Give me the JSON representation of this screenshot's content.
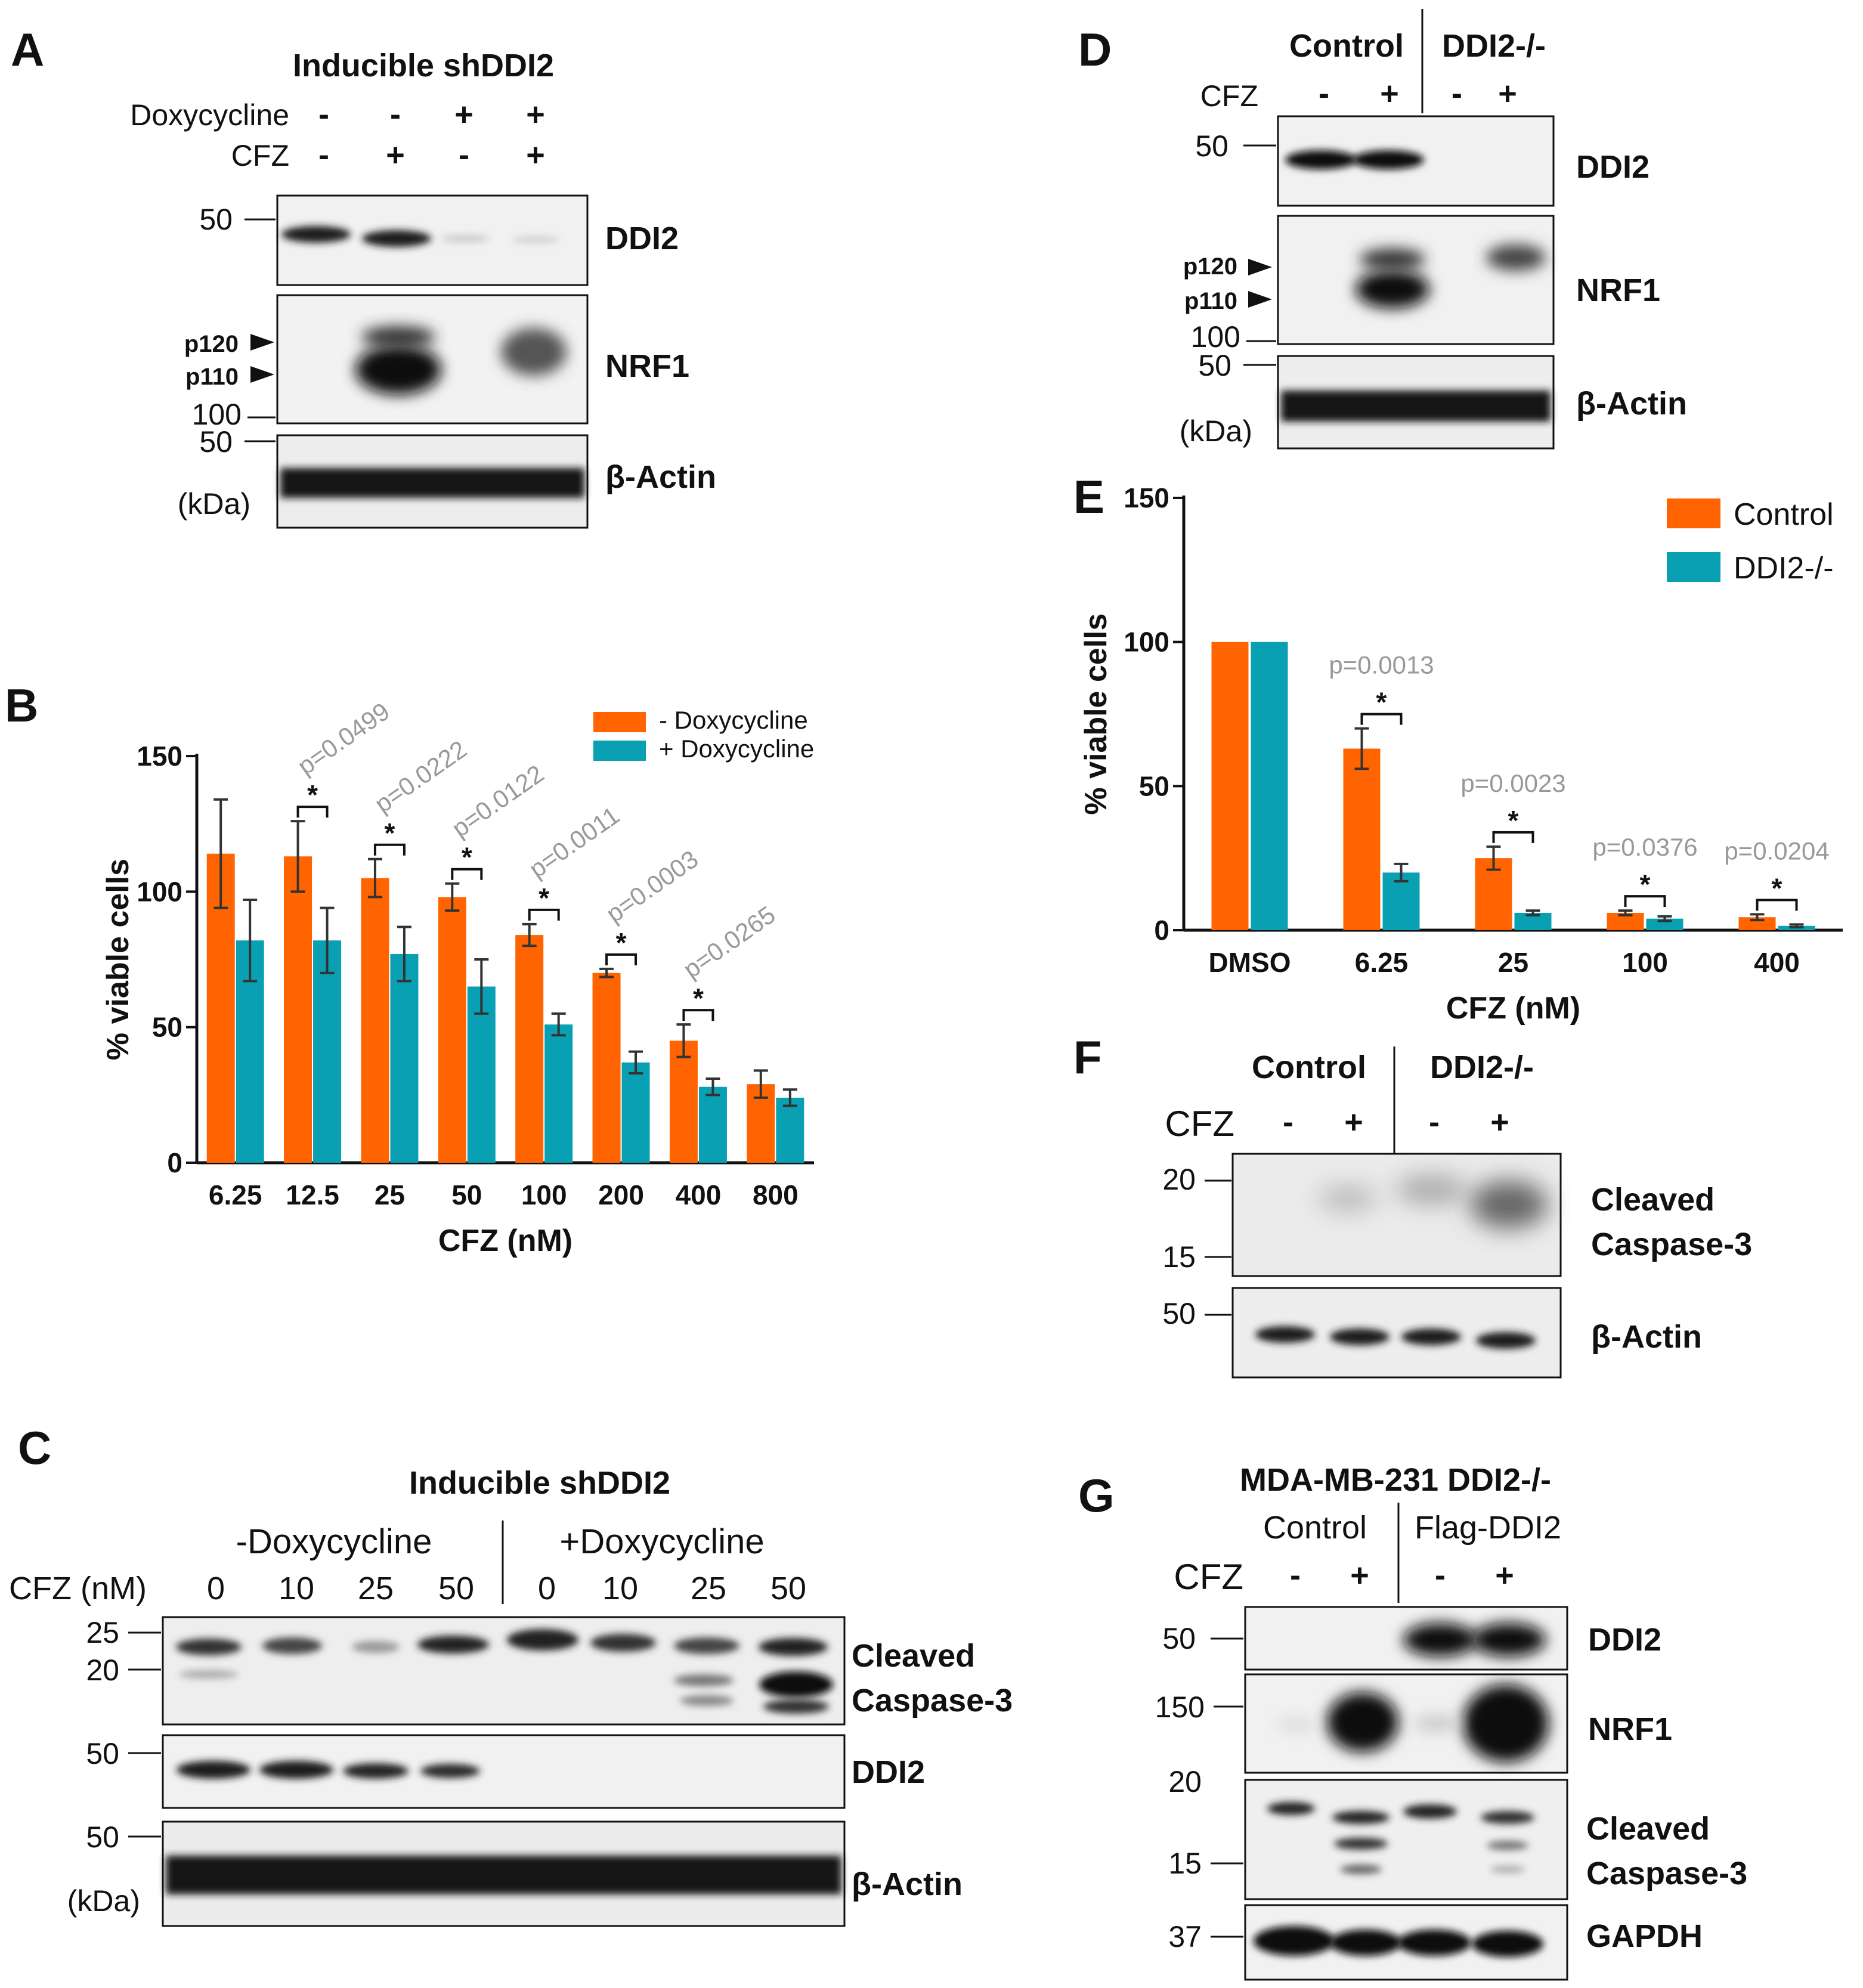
{
  "panels": {
    "A": {
      "label": "A",
      "title": "Inducible shDDI2",
      "rows": [
        {
          "name": "Doxycycline",
          "signs": [
            "-",
            "-",
            "+",
            "+"
          ]
        },
        {
          "name": "CFZ",
          "signs": [
            "-",
            "+",
            "-",
            "+"
          ]
        }
      ],
      "mw": [
        "50",
        "p120",
        "p110",
        "100",
        "50",
        "(kDa)"
      ],
      "blots": [
        "DDI2",
        "NRF1",
        "β-Actin"
      ]
    },
    "B": {
      "label": "B"
    },
    "C": {
      "label": "C",
      "title": "Inducible shDDI2",
      "groups": [
        "-Doxycycline",
        "+Doxycycline"
      ],
      "row_label": "CFZ (nM)",
      "doses": [
        "0",
        "10",
        "25",
        "50",
        "0",
        "10",
        "25",
        "50"
      ],
      "mw": [
        "25",
        "20",
        "50",
        "50",
        "(kDa)"
      ],
      "blots": [
        "Cleaved",
        "Caspase-3",
        "DDI2",
        "β-Actin"
      ]
    },
    "D": {
      "label": "D",
      "groups": [
        "Control",
        "DDI2-/-"
      ],
      "row_label": "CFZ",
      "signs": [
        "-",
        "+",
        "-",
        "+"
      ],
      "mw": [
        "50",
        "p120",
        "p110",
        "100",
        "50",
        "(kDa)"
      ],
      "blots": [
        "DDI2",
        "NRF1",
        "β-Actin"
      ]
    },
    "E": {
      "label": "E"
    },
    "F": {
      "label": "F",
      "groups": [
        "Control",
        "DDI2-/-"
      ],
      "row_label": "CFZ",
      "signs": [
        "-",
        "+",
        "-",
        "+"
      ],
      "mw": [
        "20",
        "15",
        "50"
      ],
      "blots": [
        "Cleaved",
        "Caspase-3",
        "β-Actin"
      ]
    },
    "G": {
      "label": "G",
      "title": "MDA-MB-231 DDI2-/-",
      "groups": [
        "Control",
        "Flag-DDI2"
      ],
      "row_label": "CFZ",
      "signs": [
        "-",
        "+",
        "-",
        "+"
      ],
      "mw": [
        "50",
        "150",
        "20",
        "15",
        "37"
      ],
      "blots": [
        "DDI2",
        "NRF1",
        "Cleaved",
        "Caspase-3",
        "GAPDH"
      ]
    }
  },
  "colors": {
    "orange": "#ff6400",
    "teal": "#0aa0b4",
    "pvalue": "#999999"
  },
  "chart_data": [
    {
      "panel": "B",
      "type": "bar",
      "categories": [
        "6.25",
        "12.5",
        "25",
        "50",
        "100",
        "200",
        "400",
        "800"
      ],
      "series": [
        {
          "name": "- Doxycycline",
          "color": "#ff6400",
          "values": [
            114,
            113,
            105,
            98,
            84,
            70,
            45,
            29
          ],
          "errors": [
            20,
            13,
            7,
            5,
            4,
            1.5,
            6,
            5
          ]
        },
        {
          "name": "+ Doxycycline",
          "color": "#0aa0b4",
          "values": [
            82,
            82,
            77,
            65,
            51,
            37,
            28,
            24
          ],
          "errors": [
            15,
            12,
            10,
            10,
            4,
            4,
            3,
            3
          ]
        }
      ],
      "annotations": [
        {
          "category": "12.5",
          "p": "p=0.0499",
          "sig": "*"
        },
        {
          "category": "25",
          "p": "p=0.0222",
          "sig": "*"
        },
        {
          "category": "50",
          "p": "p=0.0122",
          "sig": "*"
        },
        {
          "category": "100",
          "p": "p=0.0011",
          "sig": "*"
        },
        {
          "category": "200",
          "p": "p=0.0003",
          "sig": "*"
        },
        {
          "category": "400",
          "p": "p=0.0265",
          "sig": "*"
        }
      ],
      "xlabel": "CFZ (nM)",
      "ylabel": "% viable cells",
      "ylim": [
        0,
        150
      ],
      "yticks": [
        "0",
        "50",
        "100",
        "150"
      ],
      "legend_position": "top-right"
    },
    {
      "panel": "E",
      "type": "bar",
      "categories": [
        "DMSO",
        "6.25",
        "25",
        "100",
        "400"
      ],
      "series": [
        {
          "name": "Control",
          "color": "#ff6400",
          "values": [
            100,
            63,
            25,
            6,
            4.5
          ],
          "errors": [
            0,
            7,
            4,
            0.8,
            1
          ]
        },
        {
          "name": "DDI2-/-",
          "color": "#0aa0b4",
          "values": [
            100,
            20,
            6,
            4,
            1.5
          ],
          "errors": [
            0,
            3,
            0.8,
            0.8,
            0.5
          ]
        }
      ],
      "annotations": [
        {
          "category": "6.25",
          "p": "p=0.0013",
          "sig": "*"
        },
        {
          "category": "25",
          "p": "p=0.0023",
          "sig": "*"
        },
        {
          "category": "100",
          "p": "p=0.0376",
          "sig": "*"
        },
        {
          "category": "400",
          "p": "p=0.0204",
          "sig": "*"
        }
      ],
      "xlabel": "CFZ (nM)",
      "ylabel": "% viable cells",
      "ylim": [
        0,
        150
      ],
      "yticks": [
        "0",
        "50",
        "100",
        "150"
      ],
      "legend_position": "top-right"
    }
  ]
}
